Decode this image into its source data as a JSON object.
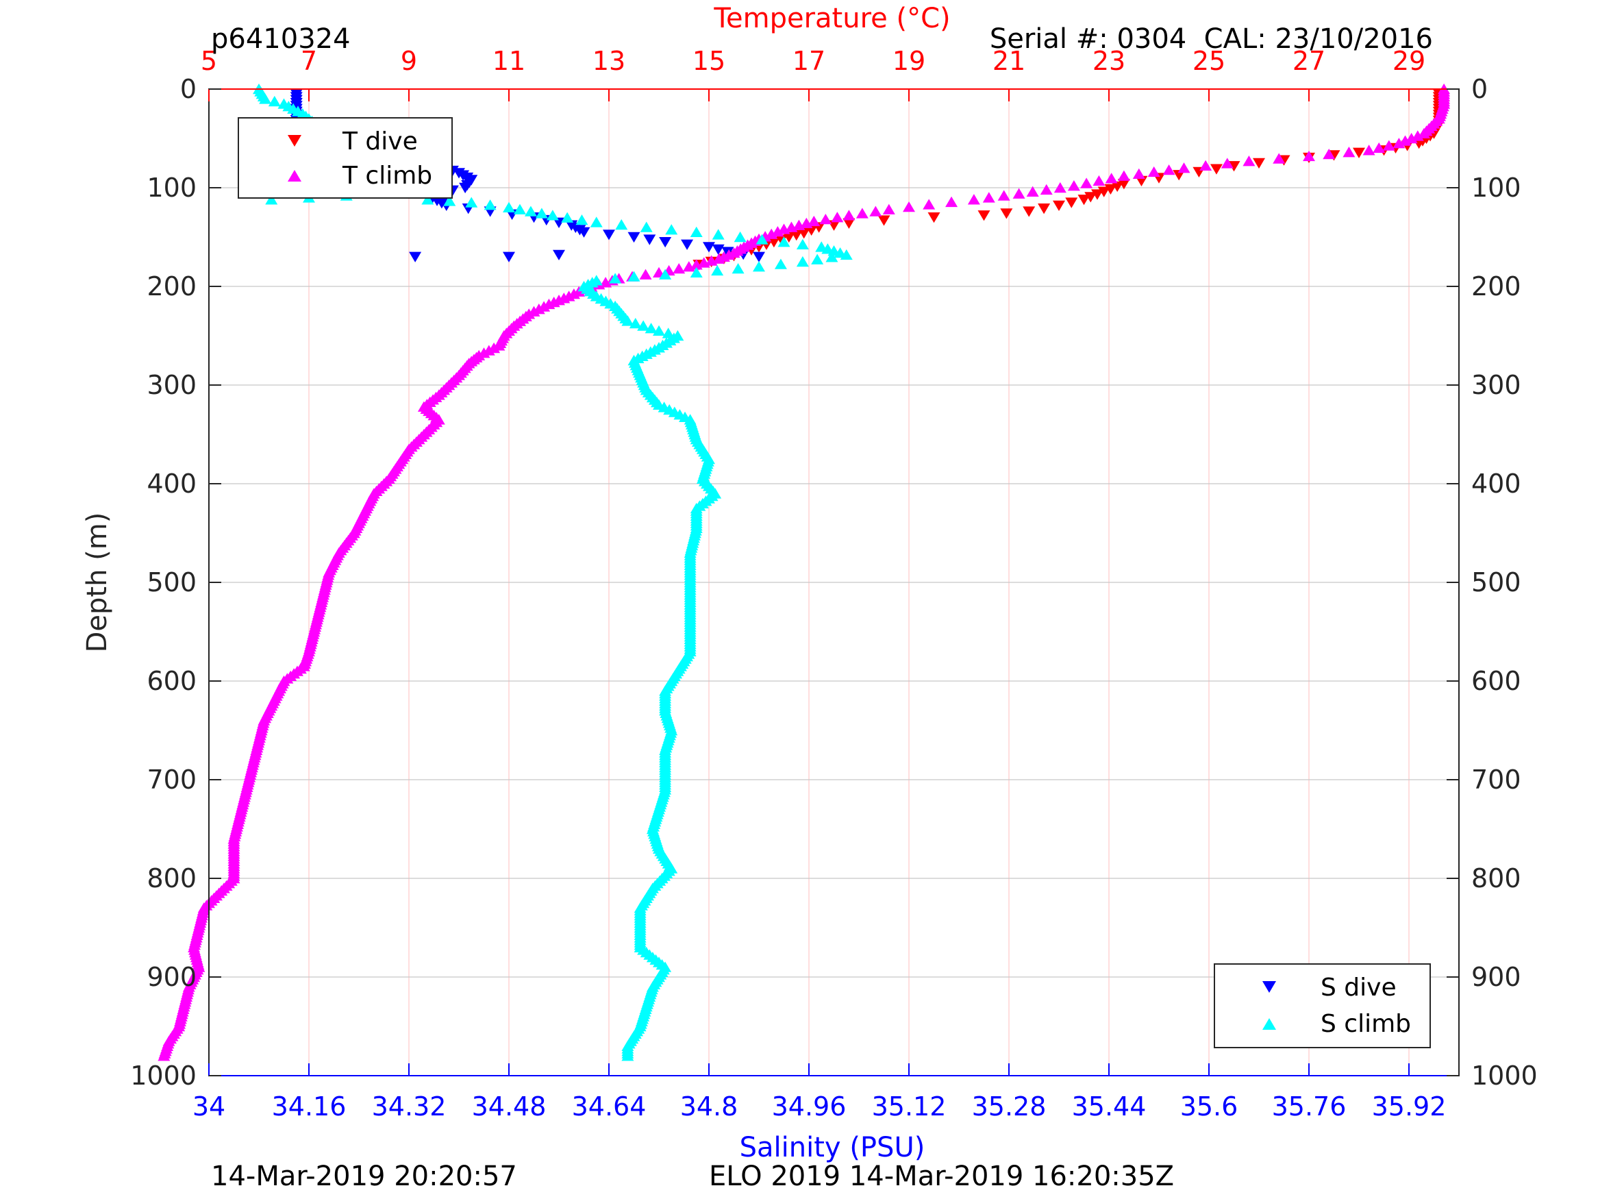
{
  "chart_data": {
    "type": "scatter",
    "header": {
      "profile_id": "p6410324",
      "serial": "Serial #: 0304  CAL: 23/10/2016"
    },
    "footer": {
      "left": "14-Mar-2019 20:20:57",
      "center": "ELO 2019 14-Mar-2019 16:20:35Z"
    },
    "top_axis": {
      "label": "Temperature (°C)",
      "range": [
        5,
        30
      ],
      "ticks": [
        "5",
        "7",
        "9",
        "11",
        "13",
        "15",
        "17",
        "19",
        "21",
        "23",
        "25",
        "27",
        "29"
      ],
      "tick_values": [
        5,
        7,
        9,
        11,
        13,
        15,
        17,
        19,
        21,
        23,
        25,
        27,
        29
      ],
      "color": "#ff0000"
    },
    "bottom_axis": {
      "label": "Salinity (PSU)",
      "range": [
        34,
        36
      ],
      "ticks": [
        "34",
        "34.16",
        "34.32",
        "34.48",
        "34.64",
        "34.8",
        "34.96",
        "35.12",
        "35.28",
        "35.44",
        "35.6",
        "35.76",
        "35.92"
      ],
      "tick_values": [
        34,
        34.16,
        34.32,
        34.48,
        34.64,
        34.8,
        34.96,
        35.12,
        35.28,
        35.44,
        35.6,
        35.76,
        35.92
      ],
      "color": "#0000ff"
    },
    "y_axis": {
      "label": "Depth (m)",
      "range": [
        0,
        1000
      ],
      "reversed": true,
      "ticks": [
        "0",
        "100",
        "200",
        "300",
        "400",
        "500",
        "600",
        "700",
        "800",
        "900",
        "1000"
      ],
      "tick_values": [
        0,
        100,
        200,
        300,
        400,
        500,
        600,
        700,
        800,
        900,
        1000
      ]
    },
    "grid": true,
    "legends": [
      {
        "placement": "top-left",
        "entries": [
          {
            "label": "T dive",
            "marker": "down-triangle",
            "color": "#ff0000"
          },
          {
            "label": "T climb",
            "marker": "up-triangle",
            "color": "#ff00ff"
          }
        ]
      },
      {
        "placement": "bottom-right",
        "entries": [
          {
            "label": "S dive",
            "marker": "down-triangle",
            "color": "#0000ff"
          },
          {
            "label": "S climb",
            "marker": "up-triangle",
            "color": "#00ffff"
          }
        ]
      }
    ],
    "series": [
      {
        "name": "T dive",
        "axis": "temperature",
        "marker": "down-triangle",
        "color": "#ff0000",
        "points": [
          [
            29.6,
            5
          ],
          [
            29.6,
            20
          ],
          [
            29.6,
            35
          ],
          [
            29.5,
            45
          ],
          [
            29.2,
            55
          ],
          [
            28.5,
            62
          ],
          [
            27.5,
            67
          ],
          [
            26.5,
            72
          ],
          [
            25.5,
            78
          ],
          [
            24.8,
            84
          ],
          [
            24,
            90
          ],
          [
            23.3,
            96
          ],
          [
            22.9,
            104
          ],
          [
            22.5,
            112
          ],
          [
            22,
            118
          ],
          [
            21.4,
            124
          ],
          [
            20.5,
            128
          ],
          [
            19.5,
            130
          ],
          [
            18.5,
            133
          ],
          [
            17.8,
            136
          ],
          [
            17.2,
            140
          ],
          [
            16.9,
            146
          ],
          [
            16.6,
            150
          ],
          [
            16.3,
            155
          ],
          [
            16,
            160
          ],
          [
            15.7,
            166
          ],
          [
            15.3,
            172
          ],
          [
            14.8,
            178
          ]
        ]
      },
      {
        "name": "T climb",
        "axis": "temperature",
        "marker": "up-triangle",
        "color": "#ff00ff",
        "points": [
          [
            29.7,
            0
          ],
          [
            29.7,
            15
          ],
          [
            29.6,
            30
          ],
          [
            29.3,
            45
          ],
          [
            28.8,
            55
          ],
          [
            28.2,
            62
          ],
          [
            27,
            68
          ],
          [
            25.8,
            73
          ],
          [
            24.5,
            80
          ],
          [
            23.3,
            88
          ],
          [
            22.3,
            98
          ],
          [
            21.2,
            106
          ],
          [
            20.3,
            112
          ],
          [
            19.4,
            117
          ],
          [
            18.6,
            122
          ],
          [
            17.8,
            128
          ],
          [
            17.1,
            134
          ],
          [
            16.5,
            142
          ],
          [
            16,
            152
          ],
          [
            15.7,
            160
          ],
          [
            15.5,
            166
          ],
          [
            15.2,
            172
          ],
          [
            14.6,
            180
          ],
          [
            14,
            186
          ],
          [
            13.2,
            192
          ],
          [
            12.8,
            198
          ],
          [
            12.5,
            203
          ],
          [
            12.2,
            210
          ],
          [
            11.8,
            218
          ],
          [
            11.4,
            228
          ],
          [
            11.1,
            240
          ],
          [
            10.9,
            250
          ],
          [
            10.8,
            260
          ],
          [
            10.4,
            270
          ],
          [
            10.2,
            278
          ],
          [
            10,
            290
          ],
          [
            9.8,
            300
          ],
          [
            9.6,
            310
          ],
          [
            9.3,
            322
          ],
          [
            9.6,
            335
          ],
          [
            9.3,
            350
          ],
          [
            9,
            365
          ],
          [
            8.8,
            380
          ],
          [
            8.6,
            395
          ],
          [
            8.3,
            410
          ],
          [
            8.1,
            430
          ],
          [
            7.9,
            450
          ],
          [
            7.6,
            470
          ],
          [
            7.4,
            490
          ],
          [
            7.3,
            510
          ],
          [
            7.2,
            530
          ],
          [
            7.1,
            550
          ],
          [
            7,
            570
          ],
          [
            6.9,
            585
          ],
          [
            6.5,
            600
          ],
          [
            6.3,
            620
          ],
          [
            6.1,
            640
          ],
          [
            6,
            660
          ],
          [
            5.9,
            680
          ],
          [
            5.8,
            700
          ],
          [
            5.7,
            720
          ],
          [
            5.6,
            740
          ],
          [
            5.5,
            760
          ],
          [
            5.5,
            780
          ],
          [
            5.5,
            800
          ],
          [
            5.2,
            815
          ],
          [
            4.9,
            830
          ],
          [
            4.8,
            850
          ],
          [
            4.7,
            870
          ],
          [
            4.8,
            890
          ],
          [
            4.6,
            910
          ],
          [
            4.5,
            930
          ],
          [
            4.4,
            950
          ],
          [
            4.2,
            965
          ],
          [
            4.1,
            980
          ]
        ]
      },
      {
        "name": "S dive",
        "axis": "salinity",
        "marker": "down-triangle",
        "color": "#0000ff",
        "points": [
          [
            34.14,
            5
          ],
          [
            34.14,
            20
          ],
          [
            34.14,
            40
          ],
          [
            34.17,
            50
          ],
          [
            34.2,
            60
          ],
          [
            34.25,
            68
          ],
          [
            34.32,
            74
          ],
          [
            34.37,
            78
          ],
          [
            34.4,
            85
          ],
          [
            34.42,
            92
          ],
          [
            34.41,
            100
          ],
          [
            34.35,
            108
          ],
          [
            34.38,
            118
          ],
          [
            34.45,
            124
          ],
          [
            34.52,
            130
          ],
          [
            34.58,
            138
          ],
          [
            34.6,
            145
          ],
          [
            34.68,
            150
          ],
          [
            34.73,
            155
          ],
          [
            34.8,
            160
          ],
          [
            34.83,
            165
          ],
          [
            34.88,
            170
          ],
          [
            34.33,
            170
          ],
          [
            34.48,
            170
          ],
          [
            34.56,
            168
          ]
        ]
      },
      {
        "name": "S climb",
        "axis": "salinity",
        "marker": "up-triangle",
        "color": "#00ffff",
        "points": [
          [
            34.08,
            0
          ],
          [
            34.09,
            10
          ],
          [
            34.12,
            15
          ],
          [
            34.15,
            25
          ],
          [
            34.17,
            35
          ],
          [
            34.19,
            45
          ],
          [
            34.22,
            55
          ],
          [
            34.16,
            65
          ],
          [
            34.2,
            70
          ],
          [
            34.25,
            75
          ],
          [
            34.3,
            82
          ],
          [
            34.33,
            90
          ],
          [
            34.31,
            100
          ],
          [
            34.22,
            108
          ],
          [
            34.1,
            112
          ],
          [
            34.35,
            112
          ],
          [
            34.42,
            115
          ],
          [
            34.48,
            120
          ],
          [
            34.55,
            128
          ],
          [
            34.62,
            135
          ],
          [
            34.7,
            140
          ],
          [
            34.78,
            145
          ],
          [
            34.85,
            150
          ],
          [
            34.92,
            155
          ],
          [
            34.98,
            160
          ],
          [
            35.02,
            168
          ],
          [
            34.95,
            175
          ],
          [
            34.88,
            180
          ],
          [
            34.78,
            186
          ],
          [
            34.68,
            190
          ],
          [
            34.62,
            194
          ],
          [
            34.6,
            200
          ],
          [
            34.62,
            210
          ],
          [
            34.65,
            220
          ],
          [
            34.67,
            235
          ],
          [
            34.72,
            245
          ],
          [
            34.75,
            250
          ],
          [
            34.72,
            262
          ],
          [
            34.68,
            275
          ],
          [
            34.69,
            290
          ],
          [
            34.7,
            305
          ],
          [
            34.72,
            320
          ],
          [
            34.77,
            335
          ],
          [
            34.78,
            355
          ],
          [
            34.8,
            375
          ],
          [
            34.79,
            395
          ],
          [
            34.81,
            410
          ],
          [
            34.78,
            425
          ],
          [
            34.78,
            445
          ],
          [
            34.77,
            470
          ],
          [
            34.77,
            495
          ],
          [
            34.77,
            520
          ],
          [
            34.77,
            545
          ],
          [
            34.77,
            570
          ],
          [
            34.75,
            590
          ],
          [
            34.73,
            610
          ],
          [
            34.73,
            630
          ],
          [
            34.74,
            650
          ],
          [
            34.73,
            670
          ],
          [
            34.73,
            690
          ],
          [
            34.73,
            710
          ],
          [
            34.72,
            730
          ],
          [
            34.71,
            750
          ],
          [
            34.72,
            770
          ],
          [
            34.74,
            790
          ],
          [
            34.71,
            810
          ],
          [
            34.69,
            830
          ],
          [
            34.69,
            850
          ],
          [
            34.69,
            870
          ],
          [
            34.73,
            890
          ],
          [
            34.71,
            910
          ],
          [
            34.7,
            930
          ],
          [
            34.69,
            950
          ],
          [
            34.67,
            970
          ],
          [
            34.67,
            980
          ]
        ]
      }
    ]
  }
}
